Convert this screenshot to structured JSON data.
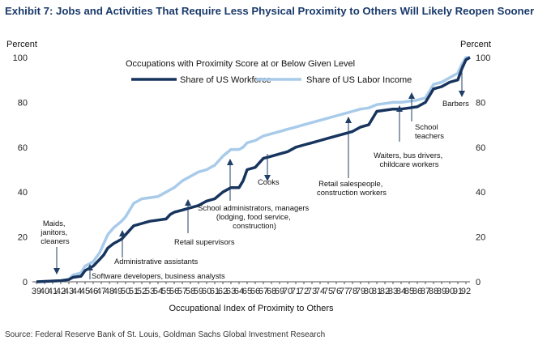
{
  "title": "Exhibit 7: Jobs and Activities That Require Less Physical Proximity to Others Will Likely Reopen Sooner",
  "source": "Source: Federal Reserve Bank of St. Louis, Goldman Sachs Global Investment Research",
  "colors": {
    "workforce": "#17345e",
    "income": "#a9cbea",
    "title": "#1a3a6b",
    "annotation_line": "#1f3f66"
  },
  "chart_data": {
    "type": "line",
    "title": "Occupations with Proximity Score at or Below Given Level",
    "xlabel": "Occupational Index of Proximity to Others",
    "ylabel_left": "Percent",
    "ylabel_right": "Percent",
    "xlim": [
      38.5,
      92.5
    ],
    "ylim": [
      0,
      100
    ],
    "xticks": [
      "39",
      "40",
      "41",
      "42",
      "43",
      "44",
      "45",
      "46",
      "47",
      "48",
      "49",
      "50",
      "51",
      "52",
      "53",
      "54",
      "55",
      "56",
      "57",
      "58",
      "59",
      "60",
      "61",
      "62",
      "63",
      "64",
      "65",
      "66",
      "67",
      "68",
      "69",
      "70",
      "71",
      "72",
      "73",
      "74",
      "75",
      "76",
      "77",
      "78",
      "79",
      "80",
      "81",
      "82",
      "83",
      "84",
      "85",
      "86",
      "87",
      "88",
      "89",
      "90",
      "91",
      "92"
    ],
    "yticks": [
      "0",
      "20",
      "40",
      "60",
      "80",
      "100"
    ],
    "series": [
      {
        "name": "Share of US Workforce",
        "points": [
          [
            39,
            0
          ],
          [
            42,
            0.5
          ],
          [
            43,
            1
          ],
          [
            43.5,
            2
          ],
          [
            44.5,
            2.5
          ],
          [
            45,
            5
          ],
          [
            46,
            7
          ],
          [
            46.8,
            10
          ],
          [
            47.3,
            12
          ],
          [
            47.8,
            15
          ],
          [
            48.5,
            17
          ],
          [
            49.5,
            19
          ],
          [
            50,
            21
          ],
          [
            51,
            25
          ],
          [
            52,
            26
          ],
          [
            53,
            27
          ],
          [
            54,
            27.5
          ],
          [
            55,
            28
          ],
          [
            55.5,
            30
          ],
          [
            56,
            31
          ],
          [
            57,
            32
          ],
          [
            58,
            33
          ],
          [
            59,
            34
          ],
          [
            60,
            36
          ],
          [
            61,
            37
          ],
          [
            62,
            40
          ],
          [
            63,
            42
          ],
          [
            64,
            42
          ],
          [
            64.5,
            45
          ],
          [
            65,
            50
          ],
          [
            66,
            51
          ],
          [
            67,
            55
          ],
          [
            68,
            56
          ],
          [
            69,
            57
          ],
          [
            70,
            58
          ],
          [
            71,
            60
          ],
          [
            72,
            61
          ],
          [
            73,
            62
          ],
          [
            74,
            63
          ],
          [
            75,
            64
          ],
          [
            76,
            65
          ],
          [
            77,
            66
          ],
          [
            78,
            67
          ],
          [
            79,
            69
          ],
          [
            80,
            70
          ],
          [
            81,
            76
          ],
          [
            82,
            76.5
          ],
          [
            83,
            77
          ],
          [
            84,
            77
          ],
          [
            85,
            77.5
          ],
          [
            86,
            78
          ],
          [
            87,
            80
          ],
          [
            87.5,
            83
          ],
          [
            88,
            86
          ],
          [
            89,
            87
          ],
          [
            90,
            89
          ],
          [
            91,
            90
          ],
          [
            91.5,
            95
          ],
          [
            92,
            99
          ],
          [
            92.5,
            100
          ]
        ]
      },
      {
        "name": "Share of US Labor Income",
        "points": [
          [
            39,
            0
          ],
          [
            42,
            0.5
          ],
          [
            43,
            1
          ],
          [
            43.5,
            3
          ],
          [
            44.5,
            4
          ],
          [
            45,
            7
          ],
          [
            46,
            9
          ],
          [
            46.8,
            13
          ],
          [
            47.3,
            17
          ],
          [
            47.8,
            21
          ],
          [
            48.5,
            24
          ],
          [
            49.5,
            27
          ],
          [
            50,
            29
          ],
          [
            51,
            35
          ],
          [
            52,
            37
          ],
          [
            53,
            37.5
          ],
          [
            54,
            38
          ],
          [
            55,
            40
          ],
          [
            55.5,
            41
          ],
          [
            56,
            42
          ],
          [
            57,
            45
          ],
          [
            58,
            47
          ],
          [
            59,
            49
          ],
          [
            60,
            50
          ],
          [
            61,
            52
          ],
          [
            62,
            56
          ],
          [
            63,
            59
          ],
          [
            64,
            59
          ],
          [
            64.5,
            60
          ],
          [
            65,
            62
          ],
          [
            66,
            63
          ],
          [
            67,
            65
          ],
          [
            68,
            66
          ],
          [
            69,
            67
          ],
          [
            70,
            68
          ],
          [
            71,
            69
          ],
          [
            72,
            70
          ],
          [
            73,
            71
          ],
          [
            74,
            72
          ],
          [
            75,
            73
          ],
          [
            76,
            74
          ],
          [
            77,
            75
          ],
          [
            78,
            76
          ],
          [
            79,
            77
          ],
          [
            80,
            77.5
          ],
          [
            81,
            79
          ],
          [
            82,
            79.5
          ],
          [
            83,
            80
          ],
          [
            84,
            80
          ],
          [
            85,
            80.5
          ],
          [
            86,
            81
          ],
          [
            87,
            82
          ],
          [
            87.5,
            85
          ],
          [
            88,
            88
          ],
          [
            89,
            89
          ],
          [
            90,
            91
          ],
          [
            91,
            93
          ],
          [
            91.5,
            97
          ],
          [
            92,
            100
          ],
          [
            92.5,
            100
          ]
        ]
      }
    ],
    "annotations": [
      {
        "lines": [
          "Maids,",
          "janitors,",
          "cleaners"
        ]
      },
      {
        "lines": [
          "Software developers, business analysts"
        ]
      },
      {
        "lines": [
          "Administrative assistants"
        ]
      },
      {
        "lines": [
          "Retail supervisors"
        ]
      },
      {
        "lines": [
          "School administrators, managers",
          "(lodging, food service,",
          "construction)"
        ]
      },
      {
        "lines": [
          "Cooks"
        ]
      },
      {
        "lines": [
          "Retail salespeople,",
          "construction workers"
        ]
      },
      {
        "lines": [
          "Waiters, bus drivers,",
          "childcare workers"
        ]
      },
      {
        "lines": [
          "School",
          "teachers"
        ]
      },
      {
        "lines": [
          "Barbers"
        ]
      }
    ]
  }
}
